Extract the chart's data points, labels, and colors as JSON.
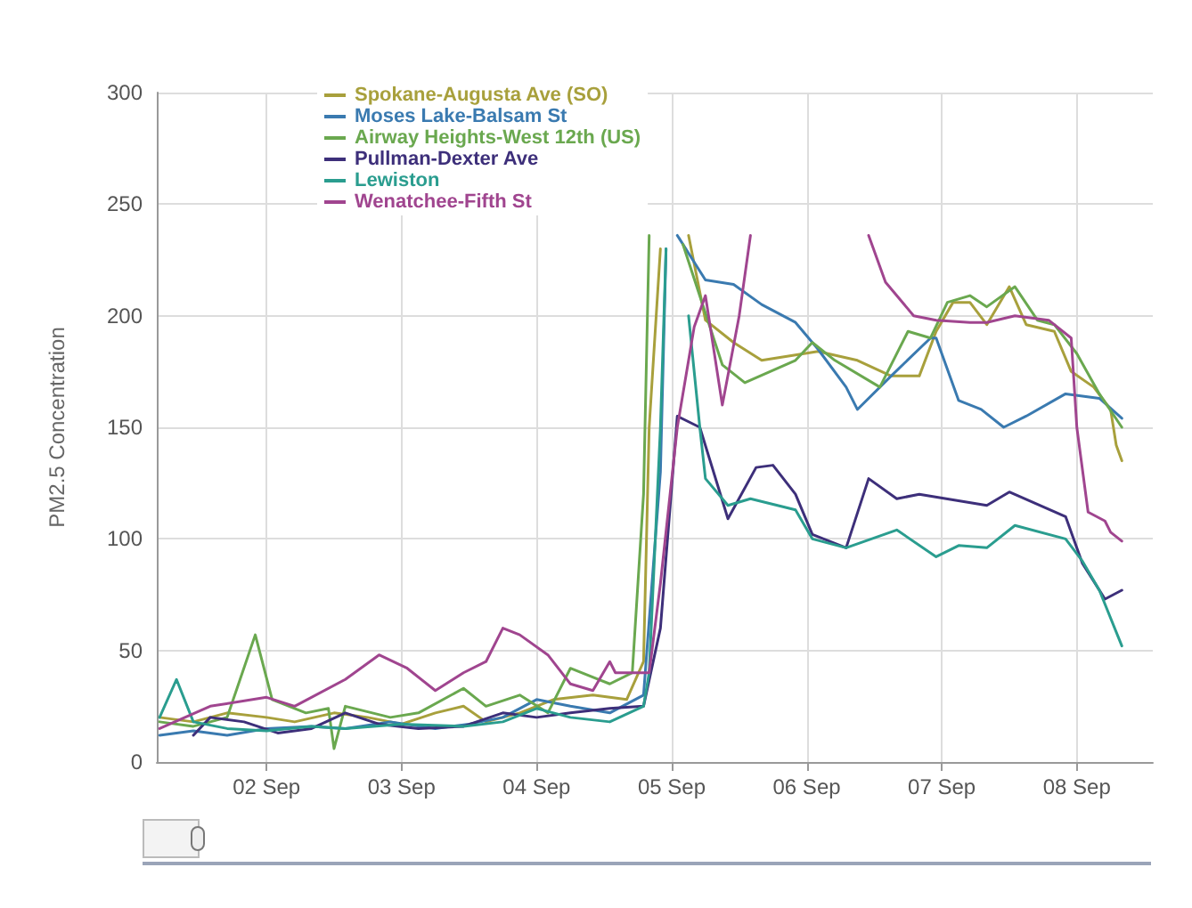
{
  "chart_data": {
    "type": "line",
    "ylabel": "PM2.5 Concentration",
    "xlim": [
      "--09-01T04:30",
      "--09-08T13:30"
    ],
    "xticks": [
      {
        "value": "--09-02",
        "label": "02 Sep"
      },
      {
        "value": "--09-03",
        "label": "03 Sep"
      },
      {
        "value": "--09-04",
        "label": "04 Sep"
      },
      {
        "value": "--09-05",
        "label": "05 Sep"
      },
      {
        "value": "--09-06",
        "label": "06 Sep"
      },
      {
        "value": "--09-07",
        "label": "07 Sep"
      },
      {
        "value": "--09-08",
        "label": "08 Sep"
      }
    ],
    "ylim": [
      0,
      300
    ],
    "yticks": [
      0,
      50,
      100,
      150,
      200,
      250,
      300
    ],
    "grid": true,
    "legend": "top left",
    "marker": "none",
    "line_style": "solid",
    "series": [
      {
        "name": "Spokane-Augusta Ave (SO)",
        "color": "#a8a03c",
        "x": [
          "--09-01T05:00",
          "--09-01T11:00",
          "--09-01T17:00",
          "--09-02T00:00",
          "--09-02T05:00",
          "--09-02T12:00",
          "--09-02T18:00",
          "--09-03T00:00",
          "--09-03T06:00",
          "--09-03T11:00",
          "--09-03T15:00",
          "--09-03T21:00",
          "--09-04T03:00",
          "--09-04T10:00",
          "--09-04T16:00",
          "--09-04T19:00",
          "--09-04T20:00",
          "--09-04T22:00",
          "--09-05T00:00",
          "--09-05T03:00",
          "--09-05T06:00",
          "--09-05T11:00",
          "--09-05T16:00",
          "--09-06T02:00",
          "--09-06T09:00",
          "--09-06T15:00",
          "--09-06T20:00",
          "--09-06T23:00",
          "--09-07T02:00",
          "--09-07T05:00",
          "--09-07T08:00",
          "--09-07T12:00",
          "--09-07T15:00",
          "--09-07T20:00",
          "--09-07T23:00",
          "--09-08T03:00",
          "--09-08T06:00",
          "--09-08T07:00",
          "--09-08T08:00"
        ],
        "values": [
          20,
          18,
          22,
          20,
          18,
          22,
          20,
          17,
          22,
          25,
          18,
          22,
          28,
          30,
          28,
          45,
          150,
          230,
          null,
          236,
          198,
          188,
          180,
          184,
          180,
          173,
          173,
          193,
          206,
          206,
          196,
          213,
          196,
          193,
          175,
          168,
          158,
          142,
          135
        ]
      },
      {
        "name": "Moses Lake-Balsam St",
        "color": "#3a7ab0",
        "x": [
          "--09-01T05:00",
          "--09-01T11:00",
          "--09-01T17:00",
          "--09-02T00:00",
          "--09-02T08:00",
          "--09-02T14:00",
          "--09-02T22:00",
          "--09-03T06:00",
          "--09-03T12:00",
          "--09-03T18:00",
          "--09-04T00:00",
          "--09-04T06:00",
          "--09-04T13:00",
          "--09-04T19:00",
          "--09-04T22:00",
          "--09-04T23:00",
          "--09-05T00:00",
          "--09-05T01:00",
          "--09-05T04:00",
          "--09-05T06:00",
          "--09-05T11:00",
          "--09-05T16:00",
          "--09-05T22:00",
          "--09-06T02:00",
          "--09-06T07:00",
          "--09-06T09:00",
          "--09-06T15:00",
          "--09-06T22:00",
          "--09-06T23:00",
          "--09-07T03:00",
          "--09-07T07:00",
          "--09-07T11:00",
          "--09-07T15:00",
          "--09-07T22:00",
          "--09-08T04:00",
          "--09-08T08:00"
        ],
        "values": [
          12,
          14,
          12,
          15,
          16,
          15,
          18,
          15,
          17,
          20,
          28,
          25,
          22,
          30,
          130,
          230,
          null,
          236,
          224,
          216,
          214,
          205,
          197,
          185,
          168,
          158,
          173,
          190,
          190,
          162,
          158,
          150,
          155,
          165,
          163,
          154
        ]
      },
      {
        "name": "Airway Heights-West 12th (US)",
        "color": "#6aa84f",
        "x": [
          "--09-01T05:00",
          "--09-01T11:00",
          "--09-01T17:00",
          "--09-01T22:00",
          "--09-02T01:00",
          "--09-02T07:00",
          "--09-02T11:00",
          "--09-02T12:00",
          "--09-02T14:00",
          "--09-02T22:00",
          "--09-03T03:00",
          "--09-03T11:00",
          "--09-03T15:00",
          "--09-03T21:00",
          "--09-04T02:00",
          "--09-04T06:00",
          "--09-04T13:00",
          "--09-04T17:00",
          "--09-04T19:00",
          "--09-04T20:00",
          "--09-04T22:00",
          "--09-05T02:00",
          "--09-05T09:00",
          "--09-05T13:00",
          "--09-05T22:00",
          "--09-06T01:00",
          "--09-06T05:00",
          "--09-06T13:00",
          "--09-06T18:00",
          "--09-06T22:00",
          "--09-07T01:00",
          "--09-07T05:00",
          "--09-07T08:00",
          "--09-07T13:00",
          "--09-07T17:00",
          "--09-07T20:00",
          "--09-08T00:00",
          "--09-08T04:00",
          "--09-08T08:00"
        ],
        "values": [
          18,
          16,
          20,
          57,
          28,
          22,
          24,
          6,
          25,
          20,
          22,
          33,
          25,
          30,
          22,
          42,
          35,
          40,
          120,
          236,
          null,
          232,
          178,
          170,
          180,
          188,
          180,
          168,
          193,
          190,
          206,
          209,
          204,
          213,
          198,
          196,
          183,
          165,
          150
        ]
      },
      {
        "name": "Pullman-Dexter Ave",
        "color": "#3d2f7a",
        "x": [
          "--09-01T11:00",
          "--09-01T14:00",
          "--09-01T20:00",
          "--09-02T02:00",
          "--09-02T08:00",
          "--09-02T14:00",
          "--09-02T20:00",
          "--09-03T03:00",
          "--09-03T11:00",
          "--09-03T18:00",
          "--09-04T00:00",
          "--09-04T06:00",
          "--09-04T13:00",
          "--09-04T19:00",
          "--09-04T22:00",
          "--09-05T01:00",
          "--09-05T05:00",
          "--09-05T10:00",
          "--09-05T15:00",
          "--09-05T18:00",
          "--09-05T22:00",
          "--09-06T01:00",
          "--09-06T07:00",
          "--09-06T11:00",
          "--09-06T16:00",
          "--09-06T20:00",
          "--09-07T08:00",
          "--09-07T12:00",
          "--09-07T22:00",
          "--09-08T01:00",
          "--09-08T05:00",
          "--09-08T08:00"
        ],
        "values": [
          12,
          20,
          18,
          13,
          15,
          22,
          17,
          15,
          16,
          22,
          20,
          22,
          24,
          25,
          60,
          155,
          150,
          109,
          132,
          133,
          120,
          102,
          96,
          127,
          118,
          120,
          115,
          121,
          110,
          89,
          73,
          77
        ]
      },
      {
        "name": "Lewiston",
        "color": "#2a9d8f",
        "x": [
          "--09-01T05:00",
          "--09-01T08:00",
          "--09-01T11:00",
          "--09-01T17:00",
          "--09-02T00:00",
          "--09-02T08:00",
          "--09-02T14:00",
          "--09-03T00:00",
          "--09-03T11:00",
          "--09-03T18:00",
          "--09-04T00:00",
          "--09-04T06:00",
          "--09-04T13:00",
          "--09-04T19:00",
          "--09-04T20:00",
          "--09-04T22:00",
          "--09-04T23:00",
          "--09-05T00:00",
          "--09-05T03:00",
          "--09-05T05:00",
          "--09-05T06:00",
          "--09-05T10:00",
          "--09-05T14:00",
          "--09-05T22:00",
          "--09-06T01:00",
          "--09-06T07:00",
          "--09-06T16:00",
          "--09-06T23:00",
          "--09-07T03:00",
          "--09-07T08:00",
          "--09-07T13:00",
          "--09-07T22:00",
          "--09-08T01:00",
          "--09-08T04:00",
          "--09-08T08:00"
        ],
        "values": [
          20,
          37,
          18,
          15,
          14,
          16,
          15,
          17,
          16,
          18,
          24,
          20,
          18,
          25,
          40,
          150,
          230,
          null,
          200,
          150,
          127,
          115,
          118,
          113,
          100,
          96,
          104,
          92,
          97,
          96,
          106,
          100,
          90,
          77,
          52
        ]
      },
      {
        "name": "Wenatchee-Fifth St",
        "color": "#a0458f",
        "x": [
          "--09-01T05:00",
          "--09-01T14:00",
          "--09-02T00:00",
          "--09-02T05:00",
          "--09-02T14:00",
          "--09-02T20:00",
          "--09-03T01:00",
          "--09-03T06:00",
          "--09-03T11:00",
          "--09-03T15:00",
          "--09-03T18:00",
          "--09-03T21:00",
          "--09-04T02:00",
          "--09-04T06:00",
          "--09-04T10:00",
          "--09-04T13:00",
          "--09-04T14:00",
          "--09-04T20:00",
          "--09-04T22:00",
          "--09-05T01:00",
          "--09-05T04:00",
          "--09-05T06:00",
          "--09-05T09:00",
          "--09-05T12:00",
          "--09-05T14:00",
          "--09-05T15:00",
          "--09-06T11:00",
          "--09-06T14:00",
          "--09-06T19:00",
          "--09-06T23:00",
          "--09-07T05:00",
          "--09-07T08:00",
          "--09-07T13:00",
          "--09-07T19:00",
          "--09-07T23:00",
          "--09-08T00:00",
          "--09-08T02:00",
          "--09-08T05:00",
          "--09-08T06:00",
          "--09-08T08:00"
        ],
        "values": [
          15,
          25,
          29,
          25,
          37,
          48,
          42,
          32,
          40,
          45,
          60,
          57,
          48,
          35,
          32,
          45,
          40,
          40,
          80,
          150,
          195,
          209,
          160,
          200,
          236,
          null,
          236,
          215,
          200,
          198,
          197,
          197,
          200,
          198,
          190,
          150,
          112,
          108,
          103,
          99
        ]
      }
    ]
  }
}
